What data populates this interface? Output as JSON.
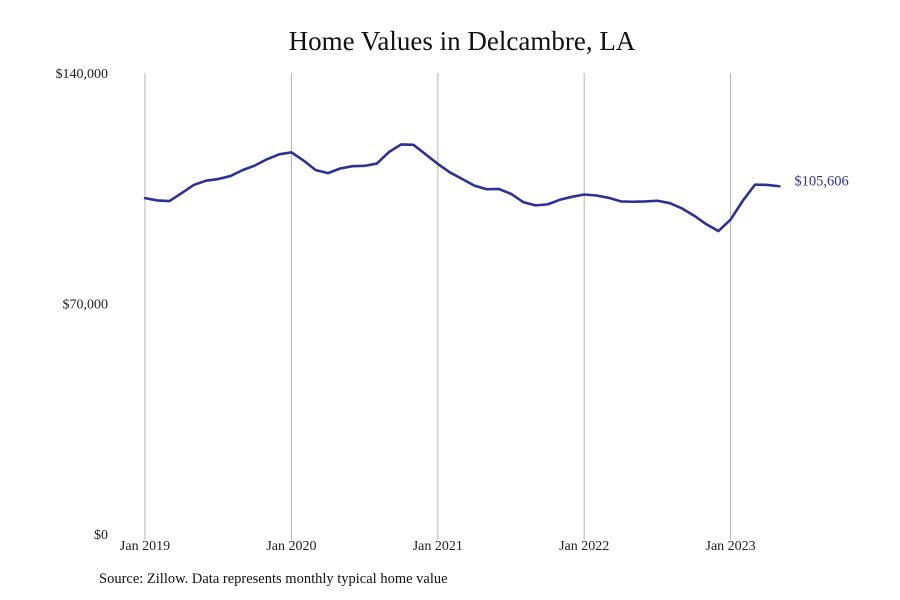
{
  "colors": {
    "line": "#2e3192",
    "grid": "#b3b3b3",
    "text": "#222222"
  },
  "source_note": "Source: Zillow. Data represents monthly typical home value",
  "chart_data": {
    "type": "line",
    "title": "Home Values in Delcambre, LA",
    "xlabel": "",
    "ylabel": "",
    "ylim": [
      0,
      140000
    ],
    "y_ticks": [
      {
        "value": 0,
        "label": "$0"
      },
      {
        "value": 70000,
        "label": "$70,000"
      },
      {
        "value": 140000,
        "label": "$140,000"
      }
    ],
    "x_range": [
      "2019-01",
      "2023-06"
    ],
    "x_ticks": [
      {
        "date": "2019-01",
        "label": "Jan 2019"
      },
      {
        "date": "2020-01",
        "label": "Jan 2020"
      },
      {
        "date": "2021-01",
        "label": "Jan 2021"
      },
      {
        "date": "2022-01",
        "label": "Jan 2022"
      },
      {
        "date": "2023-01",
        "label": "Jan 2023"
      }
    ],
    "vertical_grid": true,
    "end_label": "$105,606",
    "series": [
      {
        "x": [
          "2019-01",
          "2019-02",
          "2019-03",
          "2019-04",
          "2019-05",
          "2019-06",
          "2019-07",
          "2019-08",
          "2019-09",
          "2019-10",
          "2019-11",
          "2019-12",
          "2020-01",
          "2020-02",
          "2020-03",
          "2020-04",
          "2020-05",
          "2020-06",
          "2020-07",
          "2020-08",
          "2020-09",
          "2020-10",
          "2020-11",
          "2020-12",
          "2021-01",
          "2021-02",
          "2021-03",
          "2021-04",
          "2021-05",
          "2021-06",
          "2021-07",
          "2021-08",
          "2021-09",
          "2021-10",
          "2021-11",
          "2021-12",
          "2022-01",
          "2022-02",
          "2022-03",
          "2022-04",
          "2022-05",
          "2022-06",
          "2022-07",
          "2022-08",
          "2022-09",
          "2022-10",
          "2022-11",
          "2022-12",
          "2023-01",
          "2023-02",
          "2023-03",
          "2023-04",
          "2023-05"
        ],
        "values": [
          102000,
          101300,
          101100,
          103500,
          106000,
          107300,
          107800,
          108700,
          110500,
          111900,
          113800,
          115300,
          115900,
          113400,
          110500,
          109600,
          111000,
          111700,
          111800,
          112500,
          116000,
          118300,
          118200,
          115300,
          112400,
          109800,
          107800,
          105800,
          104700,
          104800,
          103300,
          100800,
          99800,
          100100,
          101500,
          102400,
          103100,
          102800,
          102100,
          101000,
          100900,
          101000,
          101200,
          100500,
          98900,
          96700,
          94100,
          92000,
          95500,
          101200,
          106100,
          106000,
          105606
        ]
      }
    ]
  }
}
